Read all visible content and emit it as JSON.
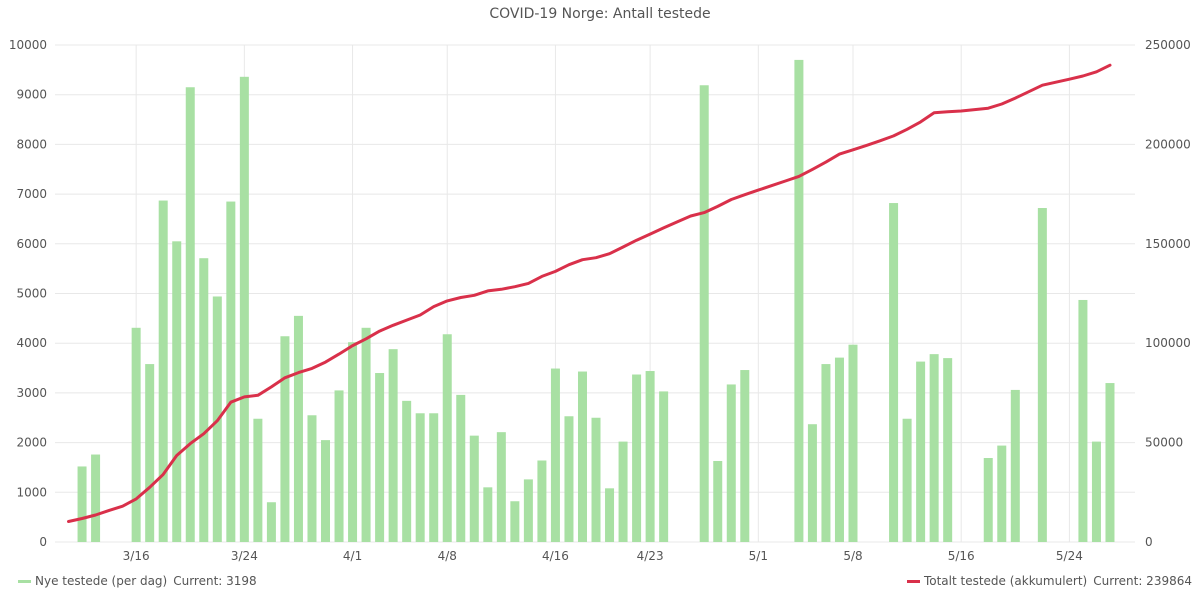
{
  "chart_data": {
    "type": "bar+line",
    "title": "COVID-19 Norge: Antall testede",
    "x_ticks": [
      "3/16",
      "3/24",
      "4/1",
      "4/8",
      "4/16",
      "4/23",
      "5/1",
      "5/8",
      "5/16",
      "5/24"
    ],
    "y_left": {
      "min": 0,
      "max": 10000,
      "ticks": [
        "0",
        "1000",
        "2000",
        "3000",
        "4000",
        "5000",
        "6000",
        "7000",
        "8000",
        "9000",
        "10000"
      ]
    },
    "y_right": {
      "min": 0,
      "max": 250000,
      "ticks": [
        "0",
        "50000",
        "100000",
        "150000",
        "200000",
        "250000"
      ]
    },
    "grid": true,
    "series": [
      {
        "name": "Nye testede (per dag)",
        "kind": "bar",
        "axis": "left",
        "color": "#a8e0a3",
        "current_label": "Current: 3198",
        "points": [
          [
            "2020-03-12",
            1520
          ],
          [
            "2020-03-13",
            1760
          ],
          [
            "2020-03-16",
            4310
          ],
          [
            "2020-03-17",
            3580
          ],
          [
            "2020-03-18",
            6870
          ],
          [
            "2020-03-19",
            6050
          ],
          [
            "2020-03-20",
            9150
          ],
          [
            "2020-03-21",
            5710
          ],
          [
            "2020-03-22",
            4940
          ],
          [
            "2020-03-23",
            6850
          ],
          [
            "2020-03-24",
            9360
          ],
          [
            "2020-03-25",
            2480
          ],
          [
            "2020-03-26",
            800
          ],
          [
            "2020-03-27",
            4140
          ],
          [
            "2020-03-28",
            4550
          ],
          [
            "2020-03-29",
            2550
          ],
          [
            "2020-03-30",
            2050
          ],
          [
            "2020-03-31",
            3050
          ],
          [
            "2020-04-01",
            4020
          ],
          [
            "2020-04-02",
            4310
          ],
          [
            "2020-04-03",
            3400
          ],
          [
            "2020-04-04",
            3880
          ],
          [
            "2020-04-05",
            2840
          ],
          [
            "2020-04-06",
            2590
          ],
          [
            "2020-04-07",
            2590
          ],
          [
            "2020-04-08",
            4180
          ],
          [
            "2020-04-09",
            2960
          ],
          [
            "2020-04-10",
            2140
          ],
          [
            "2020-04-11",
            1100
          ],
          [
            "2020-04-12",
            2210
          ],
          [
            "2020-04-13",
            820
          ],
          [
            "2020-04-14",
            1260
          ],
          [
            "2020-04-15",
            1640
          ],
          [
            "2020-04-16",
            3490
          ],
          [
            "2020-04-17",
            2530
          ],
          [
            "2020-04-18",
            3430
          ],
          [
            "2020-04-19",
            2500
          ],
          [
            "2020-04-20",
            1080
          ],
          [
            "2020-04-21",
            2020
          ],
          [
            "2020-04-22",
            3370
          ],
          [
            "2020-04-23",
            3440
          ],
          [
            "2020-04-24",
            3030
          ],
          [
            "2020-04-27",
            9190
          ],
          [
            "2020-04-28",
            1630
          ],
          [
            "2020-04-29",
            3170
          ],
          [
            "2020-04-30",
            3460
          ],
          [
            "2020-05-04",
            9700
          ],
          [
            "2020-05-05",
            2370
          ],
          [
            "2020-05-06",
            3580
          ],
          [
            "2020-05-07",
            3710
          ],
          [
            "2020-05-08",
            3970
          ],
          [
            "2020-05-11",
            6820
          ],
          [
            "2020-05-12",
            2480
          ],
          [
            "2020-05-13",
            3630
          ],
          [
            "2020-05-14",
            3780
          ],
          [
            "2020-05-15",
            3700
          ],
          [
            "2020-05-18",
            1690
          ],
          [
            "2020-05-19",
            1940
          ],
          [
            "2020-05-20",
            3060
          ],
          [
            "2020-05-22",
            6720
          ],
          [
            "2020-05-25",
            4870
          ],
          [
            "2020-05-26",
            2020
          ],
          [
            "2020-05-27",
            3198
          ]
        ]
      },
      {
        "name": "Totalt testede (akkumulert)",
        "kind": "line",
        "axis": "right",
        "color": "#d9304a",
        "current_label": "Current: 239864",
        "points": [
          [
            "2020-03-11",
            10300
          ],
          [
            "2020-03-12",
            11800
          ],
          [
            "2020-03-13",
            13600
          ],
          [
            "2020-03-14",
            15900
          ],
          [
            "2020-03-15",
            18000
          ],
          [
            "2020-03-16",
            21700
          ],
          [
            "2020-03-17",
            27500
          ],
          [
            "2020-03-18",
            34000
          ],
          [
            "2020-03-19",
            43500
          ],
          [
            "2020-03-20",
            49500
          ],
          [
            "2020-03-21",
            54500
          ],
          [
            "2020-03-22",
            61000
          ],
          [
            "2020-03-23",
            70300
          ],
          [
            "2020-03-24",
            73000
          ],
          [
            "2020-03-25",
            73800
          ],
          [
            "2020-03-26",
            78000
          ],
          [
            "2020-03-27",
            82600
          ],
          [
            "2020-03-28",
            85200
          ],
          [
            "2020-03-29",
            87300
          ],
          [
            "2020-03-30",
            90500
          ],
          [
            "2020-03-31",
            94500
          ],
          [
            "2020-04-01",
            98800
          ],
          [
            "2020-04-02",
            102200
          ],
          [
            "2020-04-03",
            106100
          ],
          [
            "2020-04-04",
            109000
          ],
          [
            "2020-04-05",
            111600
          ],
          [
            "2020-04-06",
            114200
          ],
          [
            "2020-04-07",
            118400
          ],
          [
            "2020-04-08",
            121300
          ],
          [
            "2020-04-09",
            123000
          ],
          [
            "2020-04-10",
            124100
          ],
          [
            "2020-04-11",
            126300
          ],
          [
            "2020-04-12",
            127100
          ],
          [
            "2020-04-13",
            128400
          ],
          [
            "2020-04-14",
            130100
          ],
          [
            "2020-04-15",
            133600
          ],
          [
            "2020-04-16",
            136100
          ],
          [
            "2020-04-17",
            139500
          ],
          [
            "2020-04-18",
            142000
          ],
          [
            "2020-04-19",
            143000
          ],
          [
            "2020-04-20",
            145000
          ],
          [
            "2020-04-21",
            148400
          ],
          [
            "2020-04-22",
            151800
          ],
          [
            "2020-04-23",
            154900
          ],
          [
            "2020-04-24",
            158000
          ],
          [
            "2020-04-25",
            161000
          ],
          [
            "2020-04-26",
            164000
          ],
          [
            "2020-04-27",
            165700
          ],
          [
            "2020-04-28",
            168800
          ],
          [
            "2020-04-29",
            172300
          ],
          [
            "2020-04-30",
            174700
          ],
          [
            "2020-05-01",
            177000
          ],
          [
            "2020-05-02",
            179300
          ],
          [
            "2020-05-03",
            181600
          ],
          [
            "2020-05-04",
            183900
          ],
          [
            "2020-05-05",
            187400
          ],
          [
            "2020-05-06",
            191100
          ],
          [
            "2020-05-07",
            195100
          ],
          [
            "2020-05-08",
            197300
          ],
          [
            "2020-05-09",
            199500
          ],
          [
            "2020-05-10",
            201800
          ],
          [
            "2020-05-11",
            204300
          ],
          [
            "2020-05-12",
            207600
          ],
          [
            "2020-05-13",
            211300
          ],
          [
            "2020-05-14",
            215900
          ],
          [
            "2020-05-15",
            216400
          ],
          [
            "2020-05-16",
            216800
          ],
          [
            "2020-05-17",
            217500
          ],
          [
            "2020-05-18",
            218200
          ],
          [
            "2020-05-19",
            220300
          ],
          [
            "2020-05-20",
            223300
          ],
          [
            "2020-05-21",
            226500
          ],
          [
            "2020-05-22",
            229800
          ],
          [
            "2020-05-23",
            231300
          ],
          [
            "2020-05-24",
            232800
          ],
          [
            "2020-05-25",
            234400
          ],
          [
            "2020-05-26",
            236500
          ],
          [
            "2020-05-27",
            239864
          ]
        ]
      }
    ]
  }
}
